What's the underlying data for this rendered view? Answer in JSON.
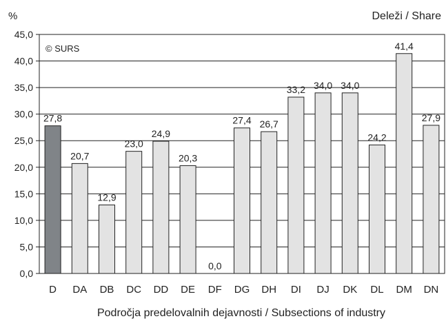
{
  "chart_data": {
    "type": "bar",
    "ylabel": "%",
    "top_right_label": "Deleži / Share",
    "xlabel": "Področja predelovalnih dejavnosti / Subsections of industry",
    "watermark": "© SURS",
    "categories": [
      "D",
      "DA",
      "DB",
      "DC",
      "DD",
      "DE",
      "DF",
      "DG",
      "DH",
      "DI",
      "DJ",
      "DK",
      "DL",
      "DM",
      "DN"
    ],
    "values": [
      27.8,
      20.7,
      12.9,
      23.0,
      24.9,
      20.3,
      0.0,
      27.4,
      26.7,
      33.2,
      34.0,
      34.0,
      24.2,
      41.4,
      27.9
    ],
    "value_labels": [
      "27,8",
      "20,7",
      "12,9",
      "23,0",
      "24,9",
      "20,3",
      "0,0",
      "27,4",
      "26,7",
      "33,2",
      "34,0",
      "34,0",
      "24,2",
      "41,4",
      "27,9"
    ],
    "ylim": [
      0,
      45
    ],
    "ytick_values": [
      0,
      5,
      10,
      15,
      20,
      25,
      30,
      35,
      40,
      45
    ],
    "ytick_labels": [
      "0,0",
      "5,0",
      "10,0",
      "15,0",
      "20,0",
      "25,0",
      "30,0",
      "35,0",
      "40,0",
      "45,0"
    ],
    "grid": true,
    "highlight_index": 0,
    "colors": {
      "highlight": "#808488",
      "bar": "#e3e3e3",
      "outline": "#222222",
      "grid": "#222222"
    }
  }
}
